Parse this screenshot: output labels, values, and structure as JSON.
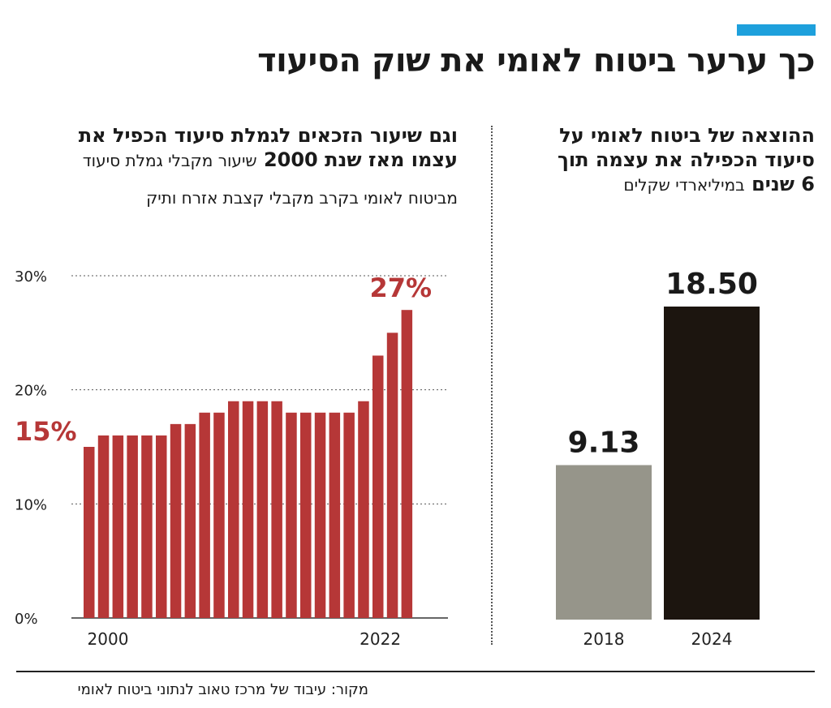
{
  "title": "כך ערער ביטוח לאומי את שוק הסיעוד",
  "left_panel": {
    "heading": "וגם שיעור הזכאים לגמלת סיעוד הכפיל את",
    "heading_line2_bold": "עצמו מאז שנת 2000",
    "heading_line2_note": "שיעור מקבלי גמלת סיעוד",
    "note_line3": "מביטוח לאומי בקרב מקבלי קצבת אזרח ותיק"
  },
  "right_panel": {
    "heading_line1": "ההוצאה של ביטוח לאומי על",
    "heading_line2": "סיעוד הכפילה את עצמה תוך",
    "heading_line3_bold": "6 שנים",
    "heading_line3_note": "במיליארדי שקלים"
  },
  "source": "מקור: עיבוד של מרכז טאוב לנתוני ביטוח לאומי",
  "colors": {
    "accent": "#1ea0dc",
    "bar_red": "#b63737",
    "bar_gray": "#96958a",
    "bar_dark": "#1c150f"
  },
  "chart_data": [
    {
      "type": "bar",
      "title": "שיעור מקבלי גמלת סיעוד מביטוח לאומי בקרב מקבלי קצבת אזרח ותיק",
      "categories": [
        "2000",
        "2001",
        "2002",
        "2003",
        "2004",
        "2005",
        "2006",
        "2007",
        "2008",
        "2009",
        "2010",
        "2011",
        "2012",
        "2013",
        "2014",
        "2015",
        "2016",
        "2017",
        "2018",
        "2019",
        "2020",
        "2021",
        "2022"
      ],
      "values": [
        15,
        16,
        16,
        16,
        16,
        16,
        17,
        17,
        18,
        18,
        19,
        19,
        19,
        19,
        18,
        18,
        18,
        18,
        18,
        19,
        23,
        25,
        27
      ],
      "unit": "%",
      "ylim": [
        0,
        30
      ],
      "yticks": [
        "0%",
        "10%",
        "20%",
        "30%"
      ],
      "x_tick_labels": [
        "2000",
        "2022"
      ],
      "annotations": {
        "first": "15%",
        "last": "27%"
      },
      "grid": "dotted horizontal"
    },
    {
      "type": "bar",
      "title": "ההוצאה של ביטוח לאומי על סיעוד, במיליארדי שקלים",
      "categories": [
        "2018",
        "2024"
      ],
      "values": [
        9.13,
        18.5
      ],
      "value_labels": [
        "9.13",
        "18.50"
      ],
      "ylim": [
        0,
        18.5
      ]
    }
  ]
}
